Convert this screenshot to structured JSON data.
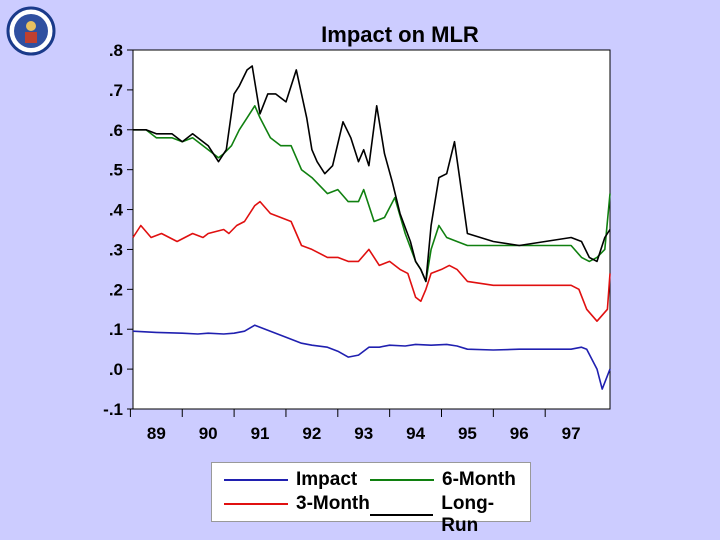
{
  "colors": {
    "impact": "#2020b0",
    "m3": "#e01010",
    "m6": "#108010",
    "lr": "#000000",
    "background": "#ccccff"
  },
  "chart_data": {
    "type": "line",
    "title": "Impact on MLR",
    "xlabel": "",
    "ylabel": "",
    "ylim": [
      -0.1,
      0.8
    ],
    "xlim": [
      1988.55,
      1997.75
    ],
    "yticks": [
      ".8",
      ".7",
      ".6",
      ".5",
      ".4",
      ".3",
      ".2",
      ".1",
      ".0",
      "-.1"
    ],
    "ytick_values": [
      0.8,
      0.7,
      0.6,
      0.5,
      0.4,
      0.3,
      0.2,
      0.1,
      0.0,
      -0.1
    ],
    "xticks": [
      "89",
      "90",
      "91",
      "92",
      "93",
      "94",
      "95",
      "96",
      "97"
    ],
    "xtick_values": [
      1989,
      1990,
      1991,
      1992,
      1993,
      1994,
      1995,
      1996,
      1997
    ],
    "legend_position": "bottom",
    "series": [
      {
        "name": "Impact",
        "color_key": "impact",
        "x": [
          1988.55,
          1989,
          1989.5,
          1989.8,
          1990,
          1990.3,
          1990.5,
          1990.7,
          1990.9,
          1991.1,
          1991.3,
          1991.5,
          1991.8,
          1992.0,
          1992.3,
          1992.5,
          1992.7,
          1992.9,
          1993.1,
          1993.3,
          1993.5,
          1993.8,
          1994.0,
          1994.3,
          1994.6,
          1994.8,
          1995.0,
          1995.5,
          1996.0,
          1996.5,
          1997.0,
          1997.2,
          1997.3,
          1997.5,
          1997.6,
          1997.75
        ],
        "y": [
          0.095,
          0.092,
          0.09,
          0.088,
          0.09,
          0.088,
          0.09,
          0.095,
          0.11,
          0.1,
          0.09,
          0.08,
          0.065,
          0.06,
          0.055,
          0.045,
          0.03,
          0.035,
          0.055,
          0.055,
          0.06,
          0.058,
          0.062,
          0.06,
          0.062,
          0.058,
          0.05,
          0.048,
          0.05,
          0.05,
          0.05,
          0.055,
          0.05,
          0.0,
          -0.05,
          0.0
        ]
      },
      {
        "name": "3-Month",
        "color_key": "m3",
        "x": [
          1988.55,
          1988.7,
          1988.9,
          1989.1,
          1989.4,
          1989.7,
          1989.9,
          1990.0,
          1990.3,
          1990.4,
          1990.55,
          1990.7,
          1990.9,
          1991.0,
          1991.2,
          1991.4,
          1991.6,
          1991.8,
          1992.0,
          1992.3,
          1992.5,
          1992.7,
          1992.9,
          1993.1,
          1993.3,
          1993.5,
          1993.7,
          1993.85,
          1994.0,
          1994.1,
          1994.2,
          1994.3,
          1994.5,
          1994.65,
          1994.8,
          1995.0,
          1995.5,
          1996.0,
          1996.5,
          1997.0,
          1997.15,
          1997.3,
          1997.5,
          1997.7,
          1997.75
        ],
        "y": [
          0.33,
          0.36,
          0.33,
          0.34,
          0.32,
          0.34,
          0.33,
          0.34,
          0.35,
          0.34,
          0.36,
          0.37,
          0.41,
          0.42,
          0.39,
          0.38,
          0.37,
          0.31,
          0.3,
          0.28,
          0.28,
          0.27,
          0.27,
          0.3,
          0.26,
          0.27,
          0.25,
          0.24,
          0.18,
          0.17,
          0.2,
          0.24,
          0.25,
          0.26,
          0.25,
          0.22,
          0.21,
          0.21,
          0.21,
          0.21,
          0.2,
          0.15,
          0.12,
          0.15,
          0.24
        ]
      },
      {
        "name": "6-Month",
        "color_key": "m6",
        "x": [
          1988.55,
          1988.8,
          1989.0,
          1989.3,
          1989.5,
          1989.7,
          1989.9,
          1990.0,
          1990.2,
          1990.3,
          1990.45,
          1990.6,
          1990.75,
          1990.9,
          1991.0,
          1991.2,
          1991.4,
          1991.6,
          1991.8,
          1992.0,
          1992.3,
          1992.5,
          1992.7,
          1992.9,
          1993.0,
          1993.2,
          1993.4,
          1993.6,
          1993.8,
          1994.0,
          1994.1,
          1994.2,
          1994.3,
          1994.45,
          1994.6,
          1994.8,
          1995.0,
          1995.5,
          1996.0,
          1996.5,
          1997.0,
          1997.2,
          1997.35,
          1997.5,
          1997.65,
          1997.75
        ],
        "y": [
          0.6,
          0.6,
          0.58,
          0.58,
          0.57,
          0.58,
          0.56,
          0.55,
          0.53,
          0.54,
          0.56,
          0.6,
          0.63,
          0.66,
          0.63,
          0.58,
          0.56,
          0.56,
          0.5,
          0.48,
          0.44,
          0.45,
          0.42,
          0.42,
          0.45,
          0.37,
          0.38,
          0.43,
          0.34,
          0.27,
          0.25,
          0.22,
          0.3,
          0.36,
          0.33,
          0.32,
          0.31,
          0.31,
          0.31,
          0.31,
          0.31,
          0.28,
          0.27,
          0.28,
          0.3,
          0.44
        ]
      },
      {
        "name": "Long-Run",
        "color_key": "lr",
        "x": [
          1988.55,
          1988.8,
          1989.0,
          1989.3,
          1989.5,
          1989.7,
          1989.9,
          1990.0,
          1990.2,
          1990.35,
          1990.5,
          1990.6,
          1990.75,
          1990.85,
          1991.0,
          1991.15,
          1991.3,
          1991.5,
          1991.7,
          1991.9,
          1992.0,
          1992.1,
          1992.25,
          1992.4,
          1992.6,
          1992.75,
          1992.9,
          1993.0,
          1993.1,
          1993.25,
          1993.4,
          1993.55,
          1993.7,
          1993.9,
          1994.0,
          1994.1,
          1994.2,
          1994.3,
          1994.45,
          1994.6,
          1994.75,
          1994.85,
          1995.0,
          1995.5,
          1996.0,
          1996.5,
          1997.0,
          1997.2,
          1997.35,
          1997.5,
          1997.65,
          1997.75
        ],
        "y": [
          0.6,
          0.6,
          0.59,
          0.59,
          0.57,
          0.59,
          0.57,
          0.56,
          0.52,
          0.55,
          0.69,
          0.71,
          0.75,
          0.76,
          0.64,
          0.69,
          0.69,
          0.67,
          0.75,
          0.63,
          0.55,
          0.52,
          0.49,
          0.51,
          0.62,
          0.58,
          0.52,
          0.55,
          0.51,
          0.66,
          0.54,
          0.47,
          0.39,
          0.32,
          0.27,
          0.25,
          0.22,
          0.36,
          0.48,
          0.49,
          0.57,
          0.48,
          0.34,
          0.32,
          0.31,
          0.32,
          0.33,
          0.32,
          0.28,
          0.27,
          0.33,
          0.35
        ]
      }
    ]
  },
  "legend": {
    "impact": "Impact",
    "m3": "3-Month",
    "m6": "6-Month",
    "lr": "Long-Run"
  }
}
